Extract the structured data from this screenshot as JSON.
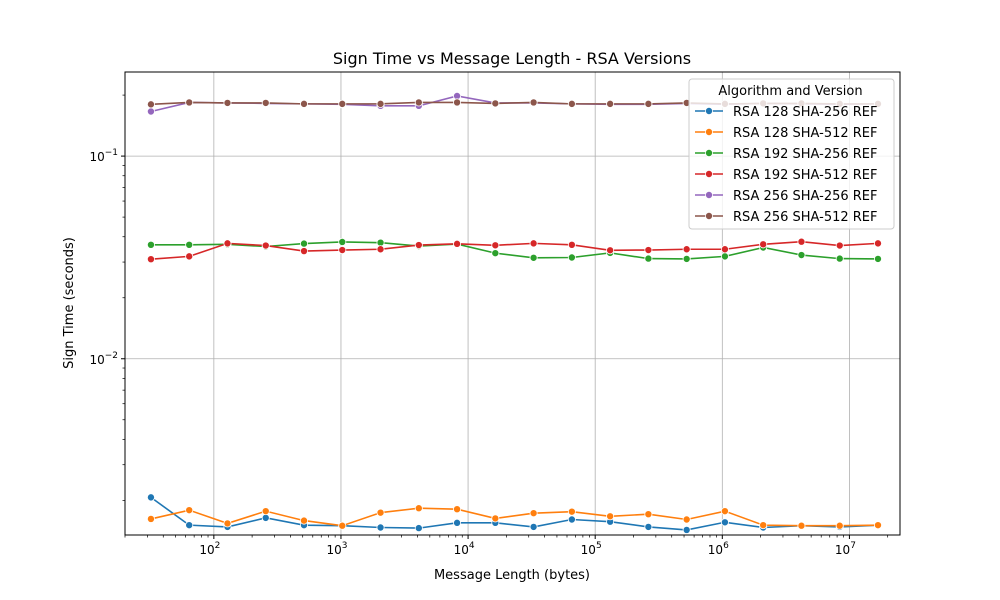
{
  "chart_data": {
    "type": "line",
    "title": "Sign Time vs Message Length - RSA Versions",
    "xlabel": "Message Length (bytes)",
    "ylabel": "Sign Time (seconds)",
    "x_scale": "log",
    "y_scale": "log",
    "xlim": [
      20,
      25000000
    ],
    "ylim": [
      0.00135,
      0.26
    ],
    "x_ticks": [
      {
        "value": 100,
        "base": "10",
        "exp": "2"
      },
      {
        "value": 1000,
        "base": "10",
        "exp": "3"
      },
      {
        "value": 10000,
        "base": "10",
        "exp": "4"
      },
      {
        "value": 100000,
        "base": "10",
        "exp": "5"
      },
      {
        "value": 1000000,
        "base": "10",
        "exp": "6"
      },
      {
        "value": 10000000,
        "base": "10",
        "exp": "7"
      }
    ],
    "y_ticks": [
      {
        "value": 0.01,
        "base": "10",
        "exp": "−2"
      },
      {
        "value": 0.1,
        "base": "10",
        "exp": "−1"
      }
    ],
    "grid": true,
    "legend_title": "Algorithm and Version",
    "legend_position": "top-right",
    "x": [
      32,
      64,
      128,
      256,
      512,
      1024,
      2048,
      4096,
      8192,
      16384,
      32768,
      65536,
      131072,
      262144,
      524288,
      1048576,
      2097152,
      4194304,
      8388608,
      16777216
    ],
    "series": [
      {
        "name": "RSA 128 SHA-256 REF",
        "color": "#1f77b4",
        "values": [
          0.00207,
          0.00151,
          0.00148,
          0.00164,
          0.00151,
          0.0015,
          0.00147,
          0.00146,
          0.00155,
          0.00155,
          0.00148,
          0.00161,
          0.00157,
          0.00148,
          0.00143,
          0.00156,
          0.00147,
          0.0015,
          0.00148,
          0.00151
        ]
      },
      {
        "name": "RSA 128 SHA-512 REF",
        "color": "#ff7f0e",
        "values": [
          0.00162,
          0.00179,
          0.00154,
          0.00177,
          0.00159,
          0.0015,
          0.00174,
          0.00183,
          0.00181,
          0.00163,
          0.00173,
          0.00176,
          0.00167,
          0.00171,
          0.00161,
          0.00177,
          0.00151,
          0.0015,
          0.0015,
          0.00151
        ]
      },
      {
        "name": "RSA 192 SHA-256 REF",
        "color": "#2ca02c",
        "values": [
          0.0365,
          0.0365,
          0.0367,
          0.0358,
          0.037,
          0.0377,
          0.0374,
          0.036,
          0.0368,
          0.0332,
          0.0315,
          0.0316,
          0.0333,
          0.0312,
          0.0311,
          0.032,
          0.0354,
          0.0325,
          0.0312,
          0.0311
        ]
      },
      {
        "name": "RSA 192 SHA-512 REF",
        "color": "#d62728",
        "values": [
          0.031,
          0.032,
          0.0371,
          0.0362,
          0.034,
          0.0344,
          0.0347,
          0.0364,
          0.0369,
          0.0363,
          0.0371,
          0.0365,
          0.0343,
          0.0344,
          0.0347,
          0.0347,
          0.0367,
          0.0378,
          0.0362,
          0.0371
        ]
      },
      {
        "name": "RSA 256 SHA-256 REF",
        "color": "#9467bd",
        "values": [
          0.166,
          0.184,
          0.183,
          0.182,
          0.181,
          0.18,
          0.177,
          0.177,
          0.198,
          0.183,
          0.183,
          0.181,
          0.18,
          0.18,
          0.182,
          0.18,
          0.182,
          0.181,
          0.18,
          0.181
        ]
      },
      {
        "name": "RSA 256 SHA-512 REF",
        "color": "#8c564b",
        "values": [
          0.18,
          0.184,
          0.183,
          0.183,
          0.181,
          0.181,
          0.181,
          0.184,
          0.184,
          0.182,
          0.184,
          0.181,
          0.181,
          0.181,
          0.183,
          0.181,
          0.182,
          0.182,
          0.181,
          0.181
        ]
      }
    ]
  }
}
